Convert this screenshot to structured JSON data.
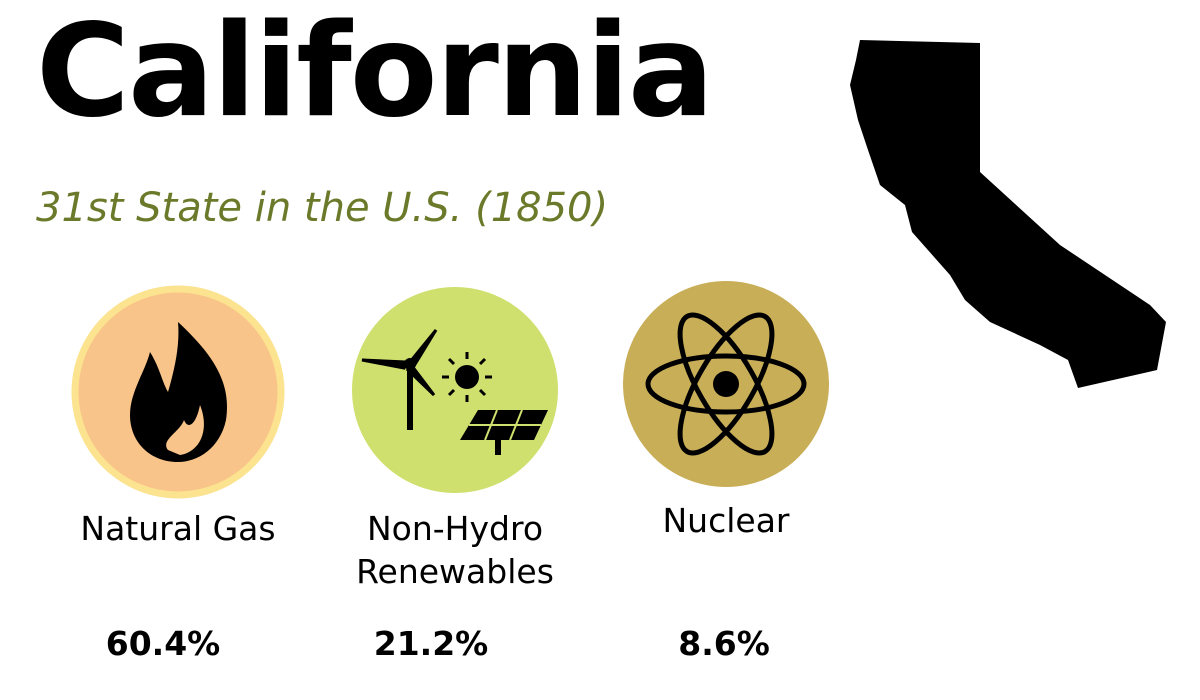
{
  "header": {
    "title": "California",
    "subtitle": "31st State in the U.S. (1850)"
  },
  "sources": [
    {
      "label": "Natural Gas",
      "share": "60.4%"
    },
    {
      "label": "Non-Hydro Renewables",
      "share": "21.2%"
    },
    {
      "label": "Nuclear",
      "share": "8.6%"
    }
  ]
}
